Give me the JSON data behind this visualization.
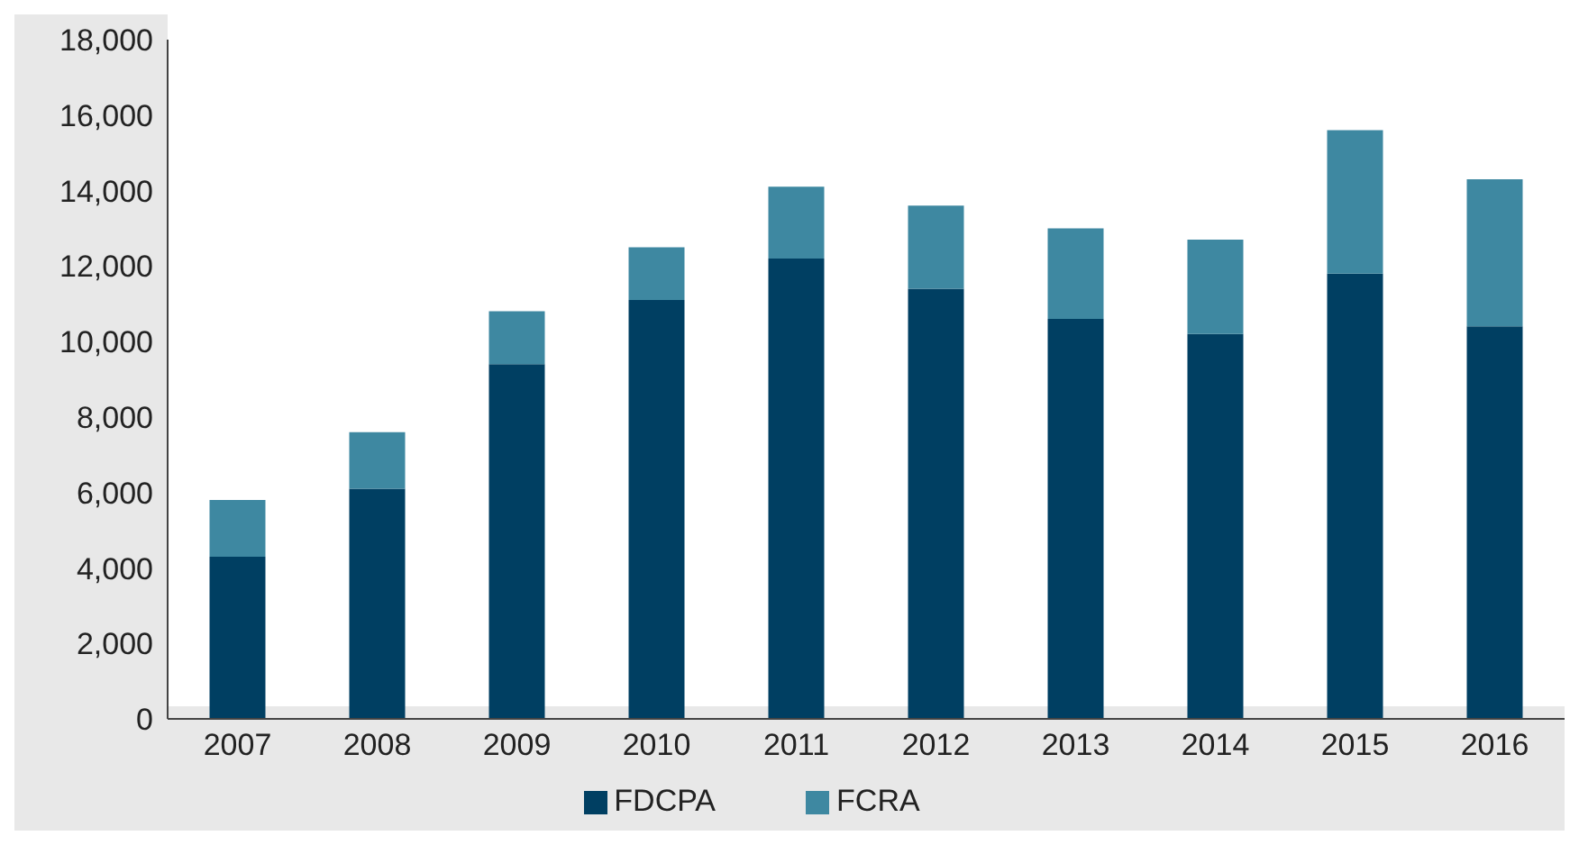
{
  "chart_data": {
    "type": "bar",
    "stacked": true,
    "categories": [
      "2007",
      "2008",
      "2009",
      "2010",
      "2011",
      "2012",
      "2013",
      "2014",
      "2015",
      "2016"
    ],
    "series": [
      {
        "name": "FDCPA",
        "color": "#003f62",
        "values": [
          4300,
          6100,
          9400,
          11100,
          12200,
          11400,
          10600,
          10200,
          11800,
          10400
        ]
      },
      {
        "name": "FCRA",
        "color": "#3e88a1",
        "values": [
          1500,
          1500,
          1400,
          1400,
          1900,
          2200,
          2400,
          2500,
          3800,
          3900
        ]
      }
    ],
    "ylim": [
      0,
      18000
    ],
    "yticks": [
      0,
      {
        "value": 2000,
        "label": "2,000"
      },
      {
        "value": 4000,
        "label": "4,000"
      },
      {
        "value": 6000,
        "label": "6,000"
      },
      {
        "value": 8000,
        "label": "8,000"
      },
      {
        "value": 10000,
        "label": "10,000"
      },
      {
        "value": 12000,
        "label": "12,000"
      },
      {
        "value": 14000,
        "label": "14,000"
      },
      {
        "value": 16000,
        "label": "16,000"
      },
      {
        "value": 18000,
        "label": "18,000"
      }
    ],
    "grid": false,
    "legend": "bottom"
  }
}
